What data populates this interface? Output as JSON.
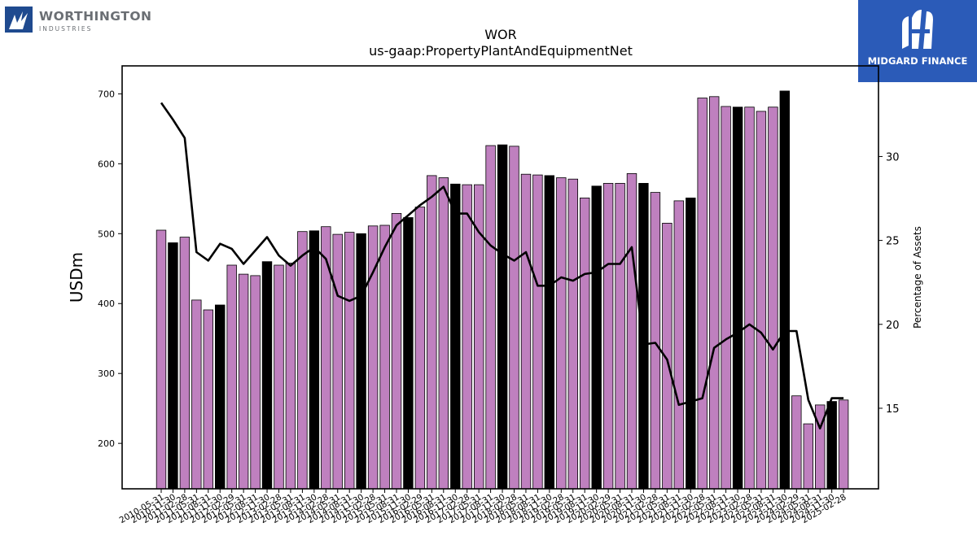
{
  "logos": {
    "left_name": "WORTHINGTON",
    "left_sub": "INDUSTRIES",
    "right_name": "MIDGARD FINANCE",
    "brand_blue": "#2b5bb8",
    "left_mark_color": "#1f4a8f"
  },
  "chart_data": {
    "type": "bar",
    "title": "WOR",
    "subtitle": "us-gaap:PropertyPlantAndEquipmentNet",
    "ylabel": "USDm",
    "y2label": "Percentage of Assets",
    "ylim": [
      135,
      740
    ],
    "y2lim": [
      10.2,
      35.4
    ],
    "yticks": [
      200,
      300,
      400,
      500,
      600,
      700
    ],
    "y2ticks": [
      15,
      20,
      25,
      30
    ],
    "bar_color": "#bf80bf",
    "highlight_color": "#000000",
    "line_color": "#000000",
    "categories": [
      "2010-05-31",
      "2010-11-30",
      "2011-02-28",
      "2011-05-31",
      "2011-08-31",
      "2011-11-30",
      "2012-02-29",
      "2012-05-31",
      "2012-08-31",
      "2012-11-30",
      "2013-02-28",
      "2013-05-31",
      "2013-08-31",
      "2013-11-30",
      "2014-02-28",
      "2014-05-31",
      "2014-08-31",
      "2014-11-30",
      "2015-02-28",
      "2015-05-31",
      "2015-08-31",
      "2015-11-30",
      "2016-02-29",
      "2016-05-31",
      "2016-08-31",
      "2016-11-30",
      "2017-02-28",
      "2017-05-31",
      "2017-08-31",
      "2017-11-30",
      "2018-02-28",
      "2018-05-31",
      "2018-08-31",
      "2018-11-30",
      "2019-02-28",
      "2019-05-31",
      "2019-08-31",
      "2019-11-30",
      "2020-02-29",
      "2020-05-31",
      "2020-08-31",
      "2020-11-30",
      "2021-02-28",
      "2021-05-31",
      "2021-08-31",
      "2021-11-30",
      "2022-02-28",
      "2022-05-31",
      "2022-08-31",
      "2022-11-30",
      "2023-02-28",
      "2023-05-31",
      "2023-08-31",
      "2023-11-30",
      "2024-02-29",
      "2024-05-31",
      "2024-08-31",
      "2024-11-30",
      "2025-02-28"
    ],
    "visible_tick_labels": [
      "2010-05-31",
      "2010-11-30",
      "2011-02-28",
      "2011-05-31",
      "2011-08-31",
      "2011-11-30",
      "2012-02-29",
      "2012-05-31",
      "2012-08-31",
      "2012-11-30",
      "2013-02-28",
      "2013-05-31",
      "2013-08-31",
      "2013-11-30",
      "2014-02-28",
      "2014-05-31",
      "2014-08-31",
      "2014-11-30",
      "2015-02-28",
      "2015-05-31",
      "2015-08-31",
      "2015-11-30",
      "2016-02-29",
      "2016-05-31",
      "2016-08-31",
      "2016-11-30",
      "2017-02-28",
      "2017-05-31",
      "2017-08-31",
      "2017-11-30",
      "2018-02-28",
      "2018-05-31",
      "2018-08-31",
      "2018-11-30",
      "2019-02-28",
      "2019-05-31",
      "2019-08-31",
      "2019-11-30",
      "2020-02-29",
      "2020-05-31",
      "2020-08-31",
      "2020-11-30",
      "2021-02-28",
      "2021-05-31",
      "2021-08-31",
      "2021-11-30",
      "2022-02-28",
      "2022-05-31",
      "2022-08-31",
      "2022-11-30",
      "2023-02-28",
      "2023-05-31",
      "2023-08-31",
      "2023-11-30",
      "2024-02-29",
      "2024-05-31",
      "2024-08-31",
      "2024-11-30",
      "2025-02-28"
    ],
    "values": [
      505,
      487,
      495,
      405,
      391,
      398,
      455,
      442,
      440,
      460,
      455,
      458,
      503,
      504,
      510,
      499,
      502,
      500,
      511,
      512,
      529,
      523,
      538,
      583,
      580,
      571,
      570,
      570,
      626,
      627,
      625,
      585,
      584,
      583,
      580,
      578,
      551,
      568,
      572,
      572,
      586,
      572,
      559,
      515,
      547,
      551,
      694,
      696,
      682,
      681,
      681,
      675,
      681,
      704,
      268,
      228,
      255,
      260,
      262
    ],
    "highlighted": [
      false,
      true,
      false,
      false,
      false,
      true,
      false,
      false,
      false,
      true,
      false,
      false,
      false,
      true,
      false,
      false,
      false,
      true,
      false,
      false,
      false,
      true,
      false,
      false,
      false,
      true,
      false,
      false,
      false,
      true,
      false,
      false,
      false,
      true,
      false,
      false,
      false,
      true,
      false,
      false,
      false,
      true,
      false,
      false,
      false,
      true,
      false,
      false,
      false,
      true,
      false,
      false,
      false,
      true,
      false,
      false,
      false,
      true,
      false
    ],
    "pct_of_assets": [
      33.2,
      32.2,
      31.1,
      24.3,
      23.8,
      24.8,
      24.5,
      23.6,
      24.4,
      25.2,
      24.1,
      23.5,
      24.1,
      24.6,
      23.9,
      21.7,
      21.4,
      21.7,
      23.1,
      24.6,
      25.9,
      26.5,
      27.1,
      27.6,
      28.2,
      26.6,
      26.6,
      25.5,
      24.7,
      24.2,
      23.8,
      24.3,
      22.3,
      22.3,
      22.8,
      22.6,
      23.0,
      23.1,
      23.6,
      23.6,
      24.6,
      18.8,
      18.9,
      17.9,
      15.2,
      15.4,
      15.6,
      18.6,
      19.1,
      19.5,
      20.0,
      19.5,
      18.5,
      19.6,
      19.6,
      15.5,
      13.8,
      15.6,
      15.6
    ]
  }
}
